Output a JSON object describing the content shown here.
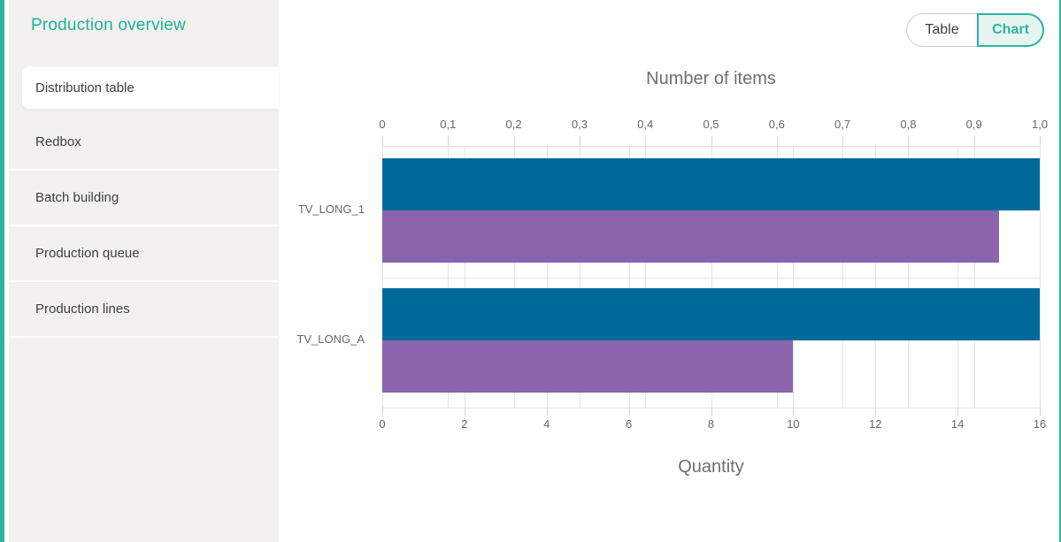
{
  "colors": {
    "accent": "#2bb5a1",
    "accent_text": "#1db39a",
    "sidebar_bg": "#f2f1f0",
    "item_text": "#3f3f42",
    "chart_text": "#6e6e6e",
    "tick_text": "#666666",
    "grid": "#e4e4e4",
    "tick": "#d6d6d6",
    "toggle_border": "#cccccc",
    "chart_btn_bg": "#e7f5f1",
    "bar_blue": "#006a9b",
    "bar_purple": "#8b64ae"
  },
  "sidebar": {
    "title": "Production overview",
    "items": [
      {
        "label": "Distribution table",
        "selected": true
      },
      {
        "label": "Redbox",
        "selected": false
      },
      {
        "label": "Batch building",
        "selected": false
      },
      {
        "label": "Production queue",
        "selected": false
      },
      {
        "label": "Production lines",
        "selected": false
      }
    ]
  },
  "toolbar": {
    "table_label": "Table",
    "chart_label": "Chart",
    "active": "Chart"
  },
  "chart_data": {
    "type": "bar",
    "orientation": "horizontal",
    "title_top": "Number of items",
    "title_bottom": "Quantity",
    "categories": [
      "TV_LONG_1",
      "TV_LONG_A"
    ],
    "series": [
      {
        "name": "Number of items",
        "color": "#006a9b",
        "axis": "top",
        "values": [
          1.0,
          1.0
        ]
      },
      {
        "name": "Quantity",
        "color": "#8b64ae",
        "axis": "bottom",
        "values": [
          15,
          10
        ]
      }
    ],
    "top_axis": {
      "min": 0,
      "max": 1,
      "ticks": [
        "0",
        "0,1",
        "0,2",
        "0,3",
        "0,4",
        "0,5",
        "0,6",
        "0,7",
        "0,8",
        "0,9",
        "1,0"
      ]
    },
    "bottom_axis": {
      "min": 0,
      "max": 16,
      "ticks": [
        "0",
        "2",
        "4",
        "6",
        "8",
        "10",
        "12",
        "14",
        "16"
      ]
    },
    "grid": true,
    "legend": false
  }
}
